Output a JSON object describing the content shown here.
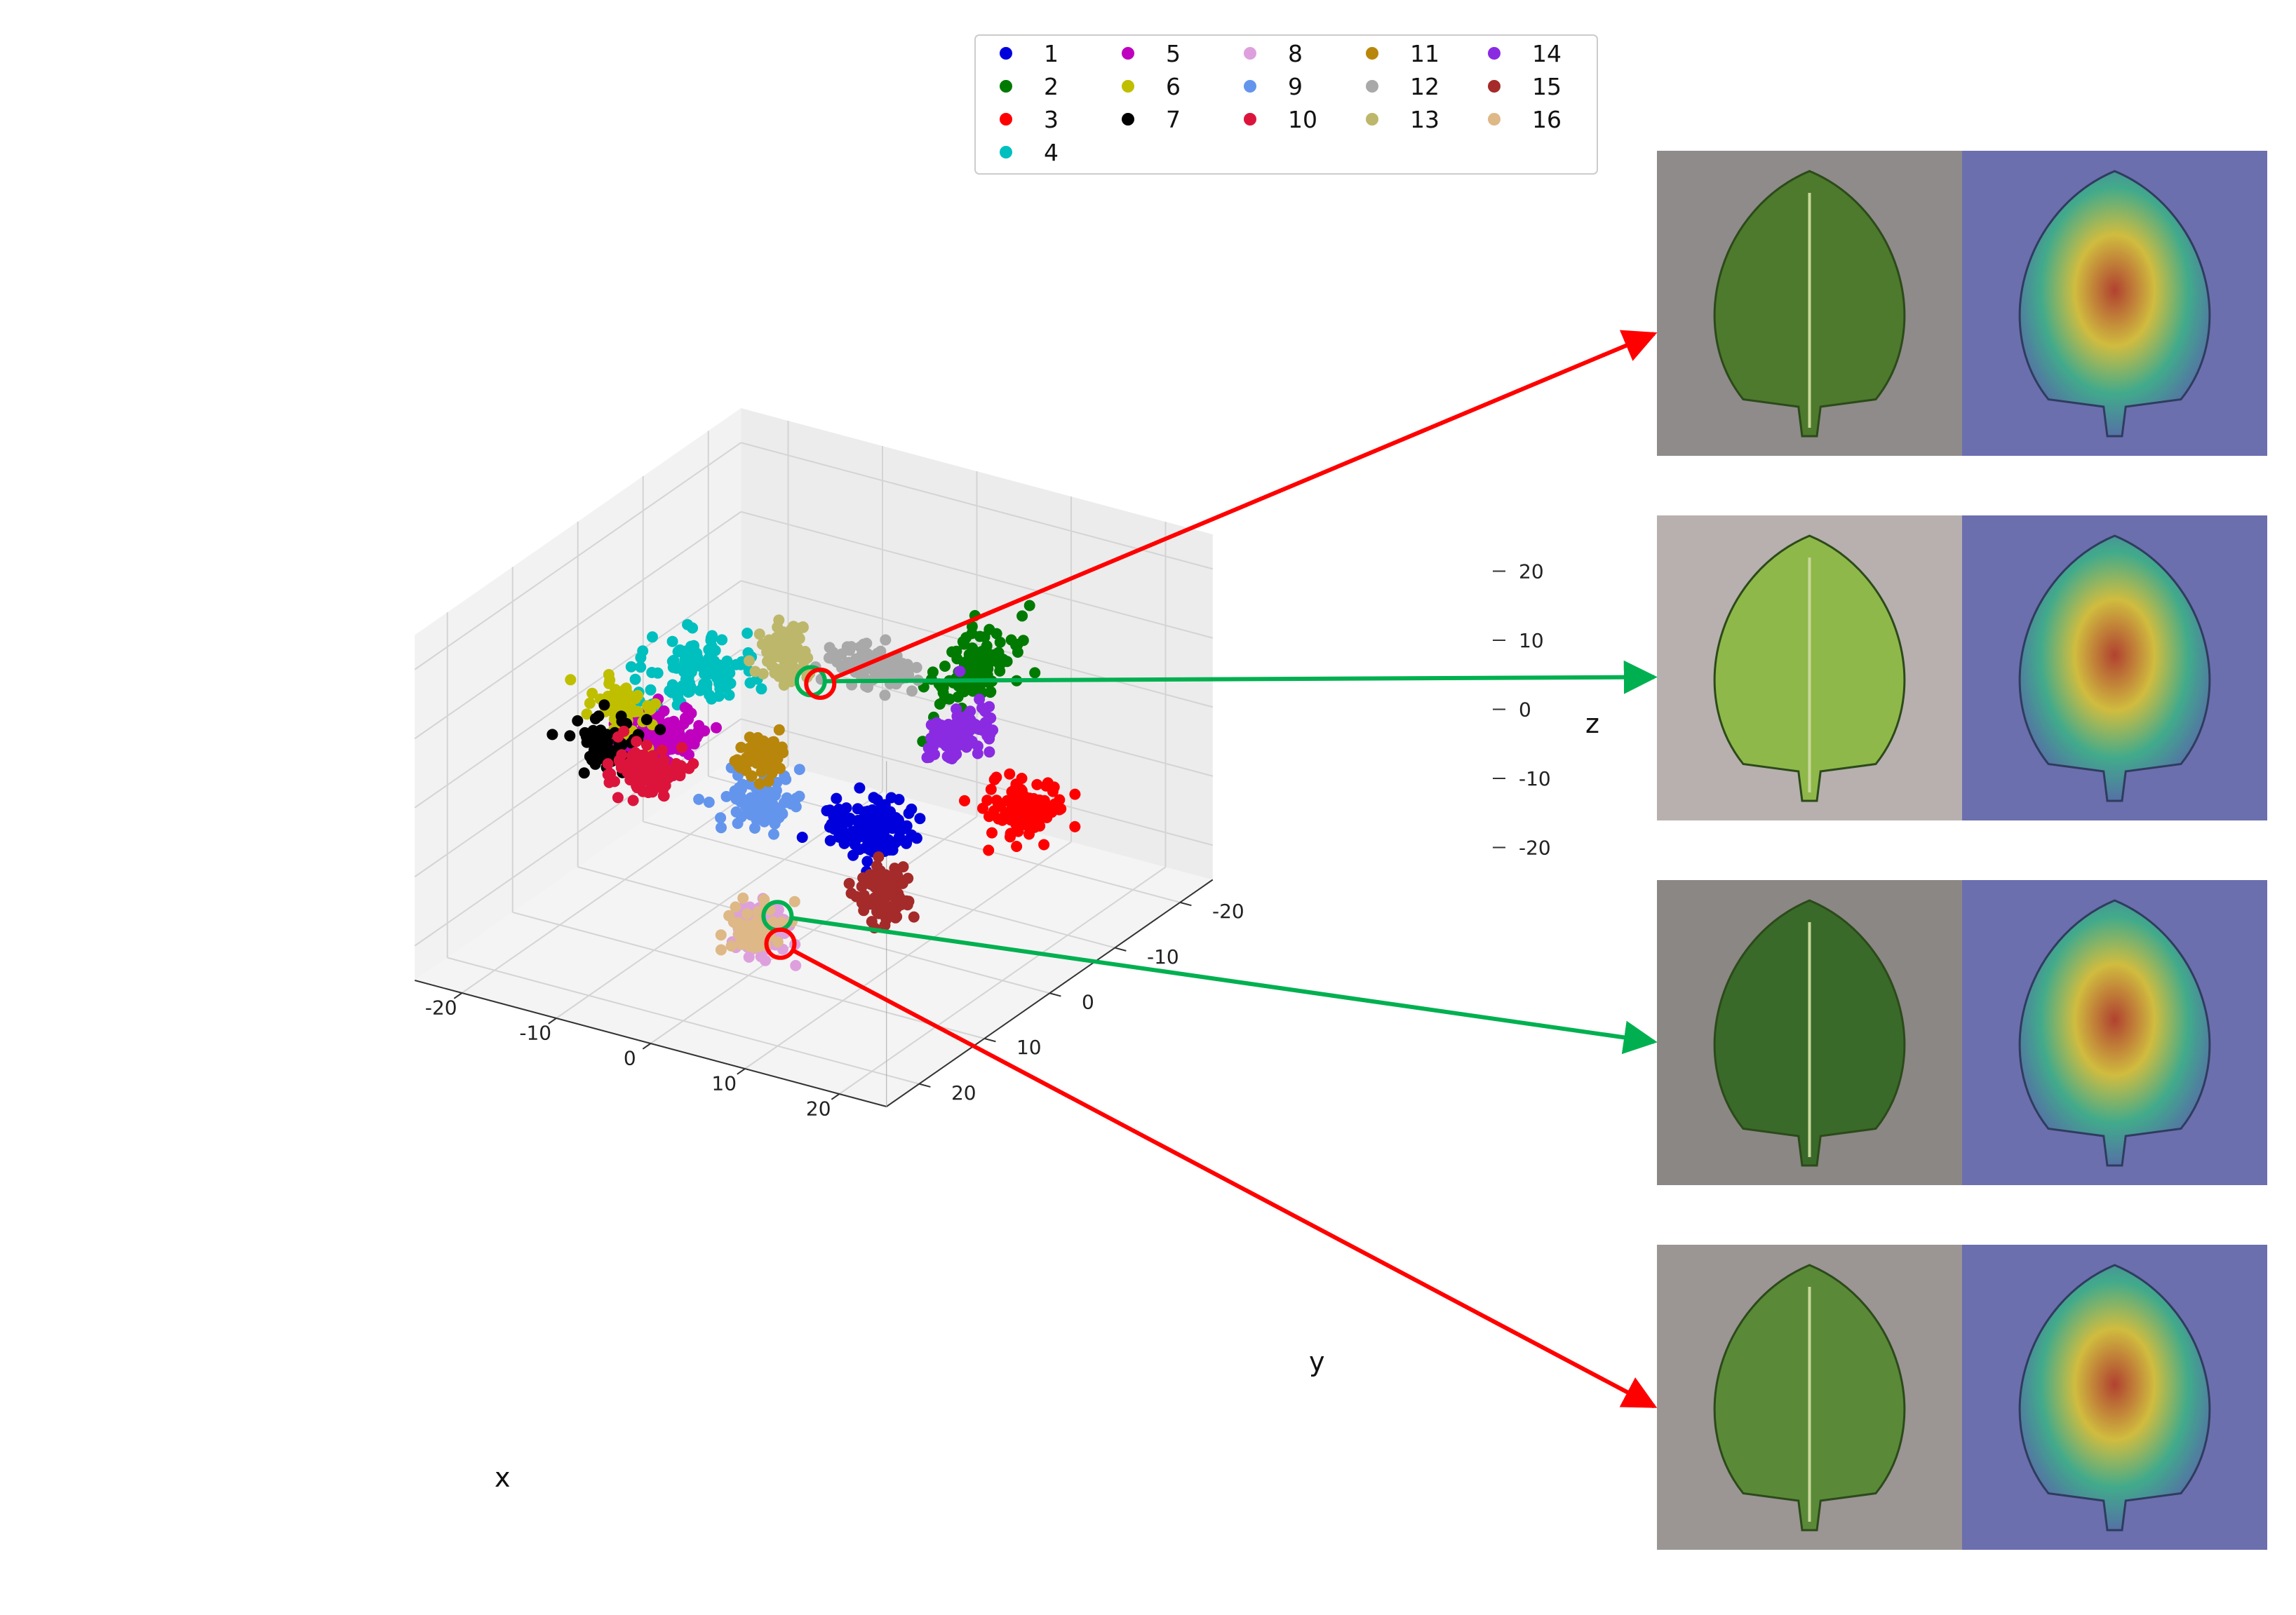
{
  "chart_data": {
    "type": "scatter",
    "dimensions": 3,
    "xlabel": "x",
    "ylabel": "y",
    "zlabel": "z",
    "xlim": [
      -25,
      25
    ],
    "ylim": [
      -25,
      25
    ],
    "zlim": [
      -25,
      25
    ],
    "xticks": [
      -20,
      -10,
      0,
      10,
      20
    ],
    "yticks": [
      -20,
      -10,
      0,
      10,
      20
    ],
    "zticks": [
      -20,
      -10,
      0,
      10,
      20
    ],
    "grid": true,
    "legend_position": "top-center",
    "series": [
      {
        "name": "1",
        "color": "#0000dd",
        "center": [
          6,
          0,
          -8
        ],
        "spread": [
          4,
          3,
          3
        ],
        "count": 130
      },
      {
        "name": "2",
        "color": "#007a00",
        "center": [
          9,
          -12,
          8
        ],
        "spread": [
          2,
          6,
          4
        ],
        "count": 110
      },
      {
        "name": "3",
        "color": "#ff0000",
        "center": [
          17,
          -7,
          -6
        ],
        "spread": [
          3,
          3,
          3
        ],
        "count": 120
      },
      {
        "name": "4",
        "color": "#00bfbf",
        "center": [
          -7,
          8,
          15
        ],
        "spread": [
          5,
          5,
          3
        ],
        "count": 120
      },
      {
        "name": "5",
        "color": "#bf00bf",
        "center": [
          -12,
          6,
          2
        ],
        "spread": [
          3,
          3,
          3
        ],
        "count": 120
      },
      {
        "name": "6",
        "color": "#bfbf00",
        "center": [
          -15,
          8,
          7
        ],
        "spread": [
          3,
          2,
          3
        ],
        "count": 70
      },
      {
        "name": "7",
        "color": "#000000",
        "center": [
          -20,
          2,
          -4
        ],
        "spread": [
          3,
          2,
          3
        ],
        "count": 70
      },
      {
        "name": "8",
        "color": "#dda0dd",
        "center": [
          0,
          8,
          -20
        ],
        "spread": [
          2,
          2,
          3
        ],
        "count": 120
      },
      {
        "name": "9",
        "color": "#6495ed",
        "center": [
          -3,
          4,
          -5
        ],
        "spread": [
          3,
          3,
          3
        ],
        "count": 90
      },
      {
        "name": "10",
        "color": "#dc143c",
        "center": [
          -17,
          1,
          -8
        ],
        "spread": [
          3,
          2,
          3
        ],
        "count": 110
      },
      {
        "name": "11",
        "color": "#b8860b",
        "center": [
          -4,
          2,
          0
        ],
        "spread": [
          2,
          2,
          2
        ],
        "count": 70
      },
      {
        "name": "12",
        "color": "#a9a9a9",
        "center": [
          3,
          -5,
          11
        ],
        "spread": [
          4,
          2,
          2
        ],
        "count": 100
      },
      {
        "name": "13",
        "color": "#bdb76b",
        "center": [
          -3,
          0,
          14
        ],
        "spread": [
          2,
          2,
          3
        ],
        "count": 110
      },
      {
        "name": "14",
        "color": "#8a2be2",
        "center": [
          10,
          -8,
          2
        ],
        "spread": [
          2,
          3,
          3
        ],
        "count": 100
      },
      {
        "name": "15",
        "color": "#a52a2a",
        "center": [
          9,
          2,
          -15
        ],
        "spread": [
          2,
          2,
          4
        ],
        "count": 100
      },
      {
        "name": "16",
        "color": "#deb887",
        "center": [
          0,
          9,
          -19
        ],
        "spread": [
          2,
          2,
          3
        ],
        "count": 60
      }
    ],
    "highlights": [
      {
        "point": [
          -1,
          -1,
          10
        ],
        "color": "#00b050",
        "target_panel": 1
      },
      {
        "point": [
          0,
          -1,
          10
        ],
        "color": "#ff0000",
        "target_panel": 0
      },
      {
        "point": [
          1,
          7,
          -18
        ],
        "color": "#00b050",
        "target_panel": 2
      },
      {
        "point": [
          2,
          8,
          -21
        ],
        "color": "#ff0000",
        "target_panel": 3
      }
    ],
    "image_panels": [
      {
        "name": "leaf-1",
        "leaf_color": "#4d7a2c",
        "background": "#8f8b8a"
      },
      {
        "name": "leaf-2",
        "leaf_color": "#8fb84a",
        "background": "#b7b0ae"
      },
      {
        "name": "leaf-3",
        "leaf_color": "#3a6a2a",
        "background": "#8a8784"
      },
      {
        "name": "leaf-4",
        "leaf_color": "#5a8a38",
        "background": "#9b9594"
      }
    ]
  }
}
